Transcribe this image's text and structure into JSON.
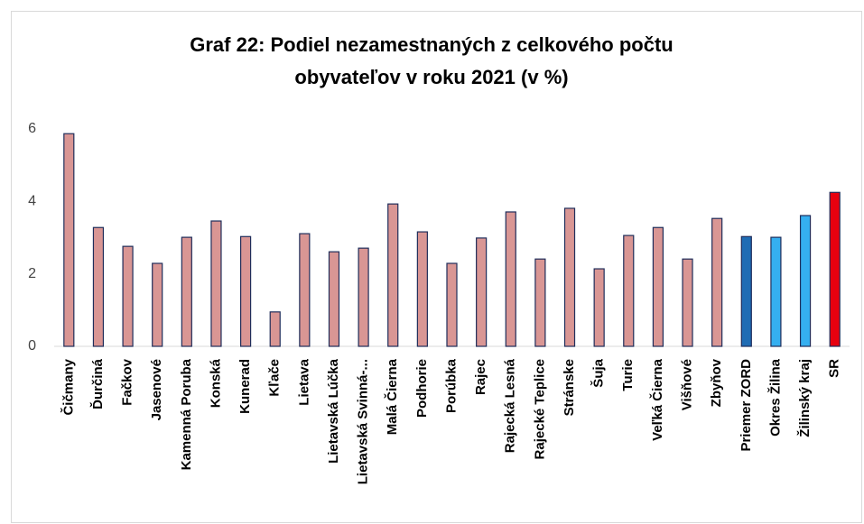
{
  "chart_data": {
    "type": "bar",
    "title": [
      "Graf 22: Podiel nezamestnaných z celkového počtu",
      "obyvateľov v roku 2021 (v %)"
    ],
    "categories": [
      "Čičmany",
      "Ďurčiná",
      "Fačkov",
      "Jasenové",
      "Kamenná Poruba",
      "Konská",
      "Kunerad",
      "Kľače",
      "Lietava",
      "Lietavská Lúčka",
      "Lietavská Svinná-...",
      "Malá Čierna",
      "Podhorie",
      "Porúbka",
      "Rajec",
      "Rajecká Lesná",
      "Rajecké Teplice",
      "Stránske",
      "Šuja",
      "Turie",
      "Veľká Čierna",
      "Višňové",
      "Zbyňov",
      "Priemer ZORD",
      "Okres Žilina",
      "Žilinský kraj",
      "SR"
    ],
    "values": [
      5.87,
      3.28,
      2.76,
      2.29,
      3.01,
      3.46,
      3.03,
      0.95,
      3.11,
      2.61,
      2.71,
      3.93,
      3.16,
      2.29,
      2.99,
      3.71,
      2.41,
      3.81,
      2.14,
      3.06,
      3.28,
      2.41,
      3.53,
      3.03,
      3.01,
      3.61,
      4.25
    ],
    "colors": [
      "#d99694",
      "#d99694",
      "#d99694",
      "#d99694",
      "#d99694",
      "#d99694",
      "#d99694",
      "#d99694",
      "#d99694",
      "#d99694",
      "#d99694",
      "#d99694",
      "#d99694",
      "#d99694",
      "#d99694",
      "#d99694",
      "#d99694",
      "#d99694",
      "#d99694",
      "#d99694",
      "#d99694",
      "#d99694",
      "#d99694",
      "#1f6cb4",
      "#35aff0",
      "#35aff0",
      "#e8000f"
    ],
    "border_color": "#1f2d5a",
    "ylim": [
      0,
      6
    ],
    "yticks": [
      0,
      2,
      4,
      6
    ],
    "grid": false
  }
}
